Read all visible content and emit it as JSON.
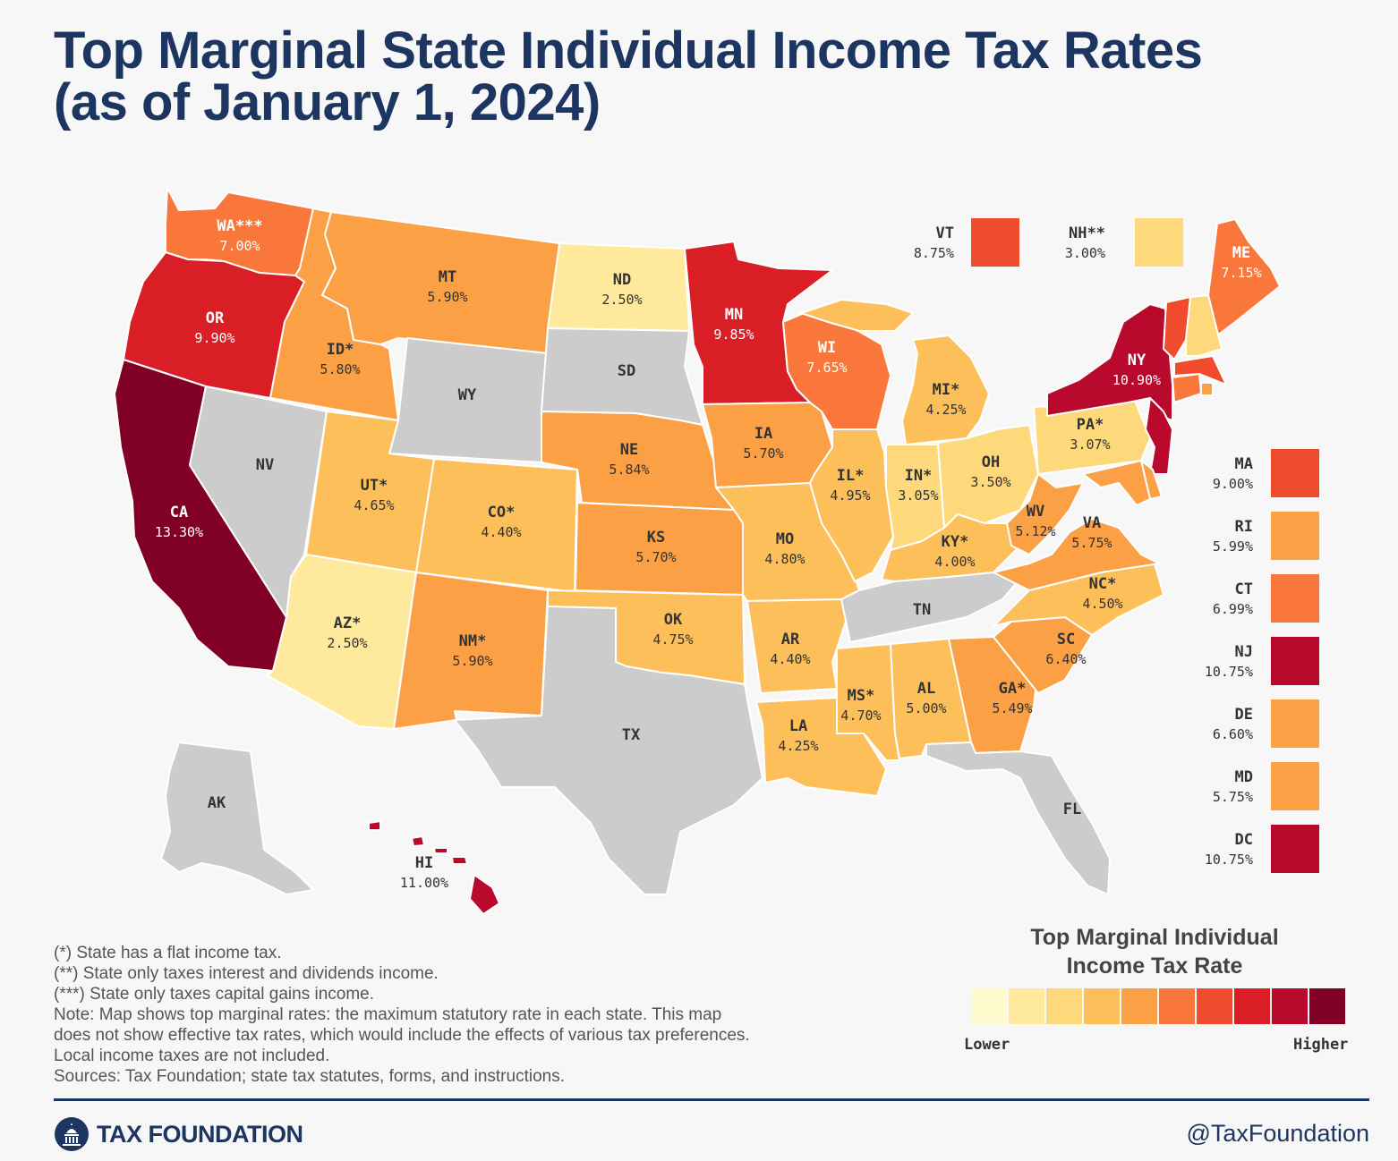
{
  "title_line1": "Top Marginal State Individual Income Tax Rates",
  "title_line2": "(as of January 1, 2024)",
  "colors": {
    "none": "#cccccc",
    "s0": "#fffacd",
    "s1": "#fee99c",
    "s2": "#fdd97b",
    "s3": "#fdbf5a",
    "s4": "#fca046",
    "s5": "#f9773a",
    "s6": "#ef4b2c",
    "s7": "#d91e25",
    "s8": "#b90a2e",
    "s9": "#800026"
  },
  "states": {
    "WA": {
      "label": "WA***",
      "rate": "7.00%",
      "tier": "s5"
    },
    "OR": {
      "label": "OR",
      "rate": "9.90%",
      "tier": "s7"
    },
    "CA": {
      "label": "CA",
      "rate": "13.30%",
      "tier": "s9"
    },
    "NV": {
      "label": "NV",
      "rate": "",
      "tier": "none"
    },
    "ID": {
      "label": "ID*",
      "rate": "5.80%",
      "tier": "s4"
    },
    "MT": {
      "label": "MT",
      "rate": "5.90%",
      "tier": "s4"
    },
    "WY": {
      "label": "WY",
      "rate": "",
      "tier": "none"
    },
    "UT": {
      "label": "UT*",
      "rate": "4.65%",
      "tier": "s3"
    },
    "AZ": {
      "label": "AZ*",
      "rate": "2.50%",
      "tier": "s1"
    },
    "CO": {
      "label": "CO*",
      "rate": "4.40%",
      "tier": "s3"
    },
    "NM": {
      "label": "NM*",
      "rate": "5.90%",
      "tier": "s4"
    },
    "ND": {
      "label": "ND",
      "rate": "2.50%",
      "tier": "s1"
    },
    "SD": {
      "label": "SD",
      "rate": "",
      "tier": "none"
    },
    "NE": {
      "label": "NE",
      "rate": "5.84%",
      "tier": "s4"
    },
    "KS": {
      "label": "KS",
      "rate": "5.70%",
      "tier": "s4"
    },
    "OK": {
      "label": "OK",
      "rate": "4.75%",
      "tier": "s3"
    },
    "TX": {
      "label": "TX",
      "rate": "",
      "tier": "none"
    },
    "MN": {
      "label": "MN",
      "rate": "9.85%",
      "tier": "s7"
    },
    "IA": {
      "label": "IA",
      "rate": "5.70%",
      "tier": "s4"
    },
    "MO": {
      "label": "MO",
      "rate": "4.80%",
      "tier": "s3"
    },
    "AR": {
      "label": "AR",
      "rate": "4.40%",
      "tier": "s3"
    },
    "LA": {
      "label": "LA",
      "rate": "4.25%",
      "tier": "s3"
    },
    "WI": {
      "label": "WI",
      "rate": "7.65%",
      "tier": "s5"
    },
    "IL": {
      "label": "IL*",
      "rate": "4.95%",
      "tier": "s3"
    },
    "MI": {
      "label": "MI*",
      "rate": "4.25%",
      "tier": "s3"
    },
    "IN": {
      "label": "IN*",
      "rate": "3.05%",
      "tier": "s2"
    },
    "OH": {
      "label": "OH",
      "rate": "3.50%",
      "tier": "s2"
    },
    "KY": {
      "label": "KY*",
      "rate": "4.00%",
      "tier": "s3"
    },
    "TN": {
      "label": "TN",
      "rate": "",
      "tier": "none"
    },
    "MS": {
      "label": "MS*",
      "rate": "4.70%",
      "tier": "s3"
    },
    "AL": {
      "label": "AL",
      "rate": "5.00%",
      "tier": "s3"
    },
    "GA": {
      "label": "GA*",
      "rate": "5.49%",
      "tier": "s4"
    },
    "FL": {
      "label": "FL",
      "rate": "",
      "tier": "none"
    },
    "SC": {
      "label": "SC",
      "rate": "6.40%",
      "tier": "s4"
    },
    "NC": {
      "label": "NC*",
      "rate": "4.50%",
      "tier": "s3"
    },
    "VA": {
      "label": "VA",
      "rate": "5.75%",
      "tier": "s4"
    },
    "WV": {
      "label": "WV",
      "rate": "5.12%",
      "tier": "s4"
    },
    "PA": {
      "label": "PA*",
      "rate": "3.07%",
      "tier": "s2"
    },
    "NY": {
      "label": "NY",
      "rate": "10.90%",
      "tier": "s8"
    },
    "ME": {
      "label": "ME",
      "rate": "7.15%",
      "tier": "s5"
    },
    "AK": {
      "label": "AK",
      "rate": "",
      "tier": "none"
    },
    "HI": {
      "label": "HI",
      "rate": "11.00%",
      "tier": "s8"
    }
  },
  "callouts": [
    {
      "abbr": "VT",
      "rate": "8.75%",
      "tier": "s6"
    },
    {
      "abbr": "NH**",
      "rate": "3.00%",
      "tier": "s2"
    },
    {
      "abbr": "MA",
      "rate": "9.00%",
      "tier": "s6"
    },
    {
      "abbr": "RI",
      "rate": "5.99%",
      "tier": "s4"
    },
    {
      "abbr": "CT",
      "rate": "6.99%",
      "tier": "s5"
    },
    {
      "abbr": "NJ",
      "rate": "10.75%",
      "tier": "s8"
    },
    {
      "abbr": "DE",
      "rate": "6.60%",
      "tier": "s4"
    },
    {
      "abbr": "MD",
      "rate": "5.75%",
      "tier": "s4"
    },
    {
      "abbr": "DC",
      "rate": "10.75%",
      "tier": "s8"
    }
  ],
  "notes": [
    "(*) State has a flat income tax.",
    "(**) State only taxes interest and dividends income.",
    "(***) State only taxes capital gains income.",
    "Note: Map shows top marginal rates: the maximum statutory rate in each state. This map",
    "does not show effective tax rates, which would include the effects of various tax preferences.",
    "Local income taxes are not included.",
    "Sources: Tax Foundation; state tax statutes, forms, and instructions."
  ],
  "scale": {
    "title_line1": "Top Marginal Individual",
    "title_line2": "Income Tax Rate",
    "lower": "Lower",
    "higher": "Higher"
  },
  "footer": {
    "brand": "TAX FOUNDATION",
    "handle": "@TaxFoundation"
  }
}
